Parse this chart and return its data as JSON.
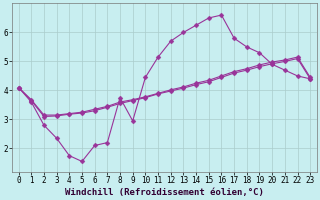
{
  "background_color": "#c8eef0",
  "grid_color": "#aacccc",
  "line_color": "#993399",
  "xlim": [
    -0.5,
    23.5
  ],
  "ylim": [
    1.2,
    7.0
  ],
  "xticks": [
    0,
    1,
    2,
    3,
    4,
    5,
    6,
    7,
    8,
    9,
    10,
    11,
    12,
    13,
    14,
    15,
    16,
    17,
    18,
    19,
    20,
    21,
    22,
    23
  ],
  "yticks": [
    2,
    3,
    4,
    5,
    6
  ],
  "line1_y": [
    4.1,
    3.6,
    2.8,
    2.35,
    1.75,
    1.55,
    2.1,
    2.2,
    3.75,
    2.95,
    4.45,
    5.15,
    5.7,
    6.0,
    6.25,
    6.5,
    6.6,
    5.8,
    5.5,
    5.3,
    4.9,
    4.7,
    4.5,
    4.4
  ],
  "line2_y": [
    4.1,
    3.65,
    3.1,
    3.12,
    3.18,
    3.22,
    3.3,
    3.42,
    3.55,
    3.65,
    3.75,
    3.88,
    3.98,
    4.08,
    4.2,
    4.3,
    4.45,
    4.6,
    4.7,
    4.82,
    4.92,
    5.0,
    5.1,
    4.4
  ],
  "line3_y": [
    4.1,
    3.68,
    3.15,
    3.15,
    3.2,
    3.25,
    3.35,
    3.45,
    3.6,
    3.68,
    3.78,
    3.9,
    4.02,
    4.12,
    4.25,
    4.35,
    4.5,
    4.65,
    4.75,
    4.88,
    4.98,
    5.05,
    5.15,
    4.45
  ],
  "xlabel": "Windchill (Refroidissement éolien,°C)",
  "markersize": 2.5,
  "linewidth": 0.8,
  "tick_fontsize": 5.5,
  "label_fontsize": 6.5
}
